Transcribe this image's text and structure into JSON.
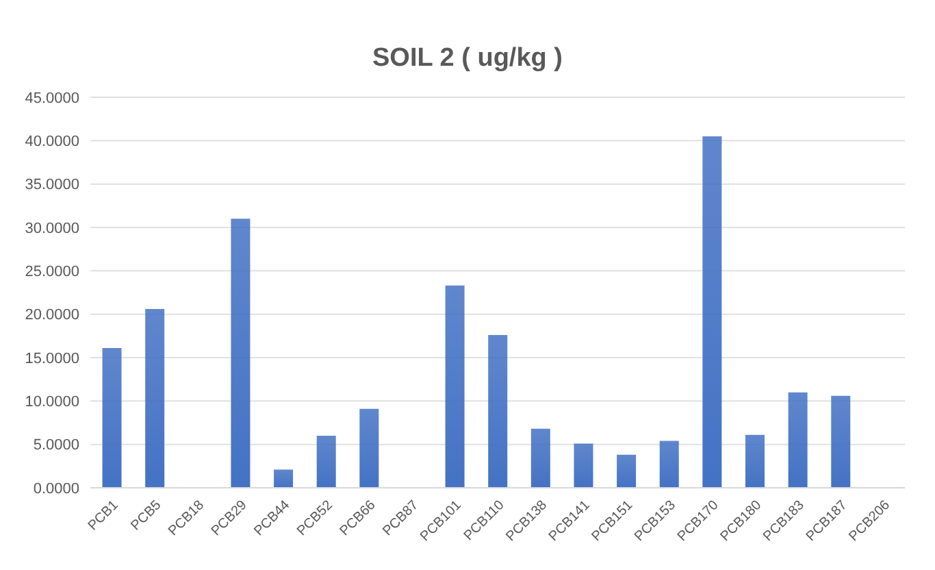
{
  "chart_data": {
    "type": "bar",
    "title": "SOIL 2 ( ug/kg )",
    "categories": [
      "PCB1",
      "PCB5",
      "PCB18",
      "PCB29",
      "PCB44",
      "PCB52",
      "PCB66",
      "PCB87",
      "PCB101",
      "PCB110",
      "PCB138",
      "PCB141",
      "PCB151",
      "PCB153",
      "PCB170",
      "PCB180",
      "PCB183",
      "PCB187",
      "PCB206"
    ],
    "values": [
      16.1,
      20.6,
      0,
      31.0,
      2.1,
      6.0,
      9.1,
      0,
      23.3,
      17.6,
      6.8,
      5.1,
      3.8,
      5.4,
      40.5,
      6.1,
      11.0,
      10.6,
      0
    ],
    "color": "#4472c4",
    "ylim": [
      0,
      45
    ],
    "yticks": [
      {
        "value": 0,
        "label": "0.0000"
      },
      {
        "value": 5,
        "label": "5.0000"
      },
      {
        "value": 10,
        "label": "10.0000"
      },
      {
        "value": 15,
        "label": "15.0000"
      },
      {
        "value": 20,
        "label": "20.0000"
      },
      {
        "value": 25,
        "label": "25.0000"
      },
      {
        "value": 30,
        "label": "30.0000"
      },
      {
        "value": 35,
        "label": "35.0000"
      },
      {
        "value": 40,
        "label": "40.0000"
      },
      {
        "value": 45,
        "label": "45.0000"
      }
    ],
    "grid": "y"
  }
}
